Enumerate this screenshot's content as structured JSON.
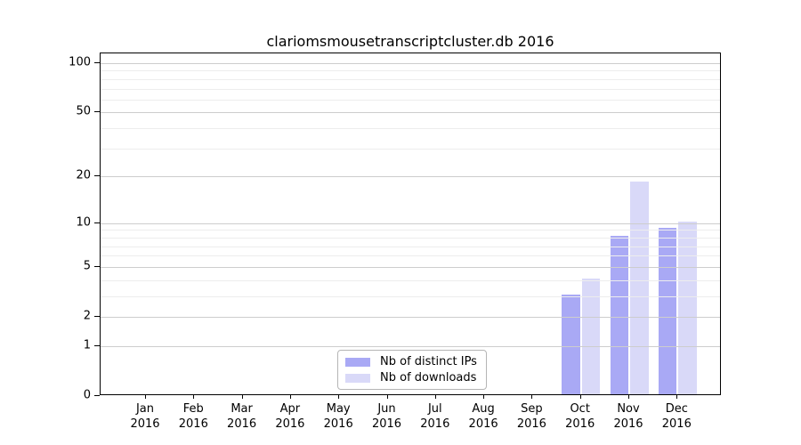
{
  "chart_data": {
    "type": "bar",
    "title": "clariomsmousetranscriptcluster.db 2016",
    "categories": [
      "Jan 2016",
      "Feb 2016",
      "Mar 2016",
      "Apr 2016",
      "May 2016",
      "Jun 2016",
      "Jul 2016",
      "Aug 2016",
      "Sep 2016",
      "Oct 2016",
      "Nov 2016",
      "Dec 2016"
    ],
    "x_axis": {
      "months": [
        "Jan",
        "Feb",
        "Mar",
        "Apr",
        "May",
        "Jun",
        "Jul",
        "Aug",
        "Sep",
        "Oct",
        "Nov",
        "Dec"
      ],
      "year_label": "2016"
    },
    "series": [
      {
        "name": "Nb of distinct IPs",
        "color": "#a9a9f5",
        "values": [
          0,
          0,
          0,
          0,
          0,
          0,
          0,
          0,
          0,
          3,
          8,
          9
        ]
      },
      {
        "name": "Nb of downloads",
        "color": "#d9d9f8",
        "values": [
          0,
          0,
          0,
          0,
          0,
          0,
          0,
          0,
          0,
          4,
          18,
          10
        ]
      }
    ],
    "y_axis": {
      "scale": "log1p",
      "major_ticks": [
        0,
        1,
        2,
        5,
        10,
        20,
        50,
        100
      ],
      "minor_gridlines": [
        3,
        4,
        6,
        7,
        8,
        9,
        30,
        40,
        60,
        70,
        80,
        90
      ],
      "max_value": 100
    },
    "ylim": [
      0,
      100
    ],
    "xlabel": "",
    "ylabel": "",
    "grid": true,
    "legend_position": "lower center",
    "colors": {
      "major_grid": "#cdcdcd",
      "minor_grid": "#ededed",
      "spine": "#000000",
      "text": "#000000"
    }
  }
}
